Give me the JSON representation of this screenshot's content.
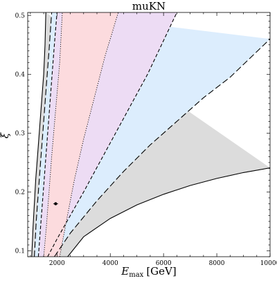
{
  "chart_data": {
    "type": "area",
    "title": "muKN",
    "xlabel": {
      "symbol": "E",
      "subscript": "max",
      "unit": "[GeV]"
    },
    "ylabel": "ξ",
    "xlim": [
      900,
      10000
    ],
    "ylim": [
      0.09,
      0.505
    ],
    "xticks": [
      2000,
      4000,
      6000,
      8000,
      10000
    ],
    "xtick_labels": [
      "2000",
      "4000",
      "6000",
      "8000",
      "10000"
    ],
    "yticks": [
      0.1,
      0.2,
      0.3,
      0.4,
      0.5
    ],
    "ytick_labels": [
      "0.1",
      "0.2",
      "0.3",
      "0.4",
      "0.5"
    ],
    "grid": false,
    "colors": {
      "outer": "#dcdcdc",
      "band2": "#dcedfd",
      "band1": "#eddcf4",
      "core": "#fcdbde",
      "line": "#000000",
      "frame": "#000000"
    },
    "regions": [
      {
        "name": "outer",
        "left": {
          "x": [
            1050,
            1100,
            1150,
            1200,
            1300,
            1400,
            1500,
            1550,
            1580
          ],
          "y": [
            0.09,
            0.14,
            0.18,
            0.22,
            0.28,
            0.34,
            0.4,
            0.45,
            0.505
          ]
        },
        "right": {
          "x": [
            2400,
            3000,
            4000,
            5000,
            6000,
            7000,
            8000,
            9000,
            10000
          ],
          "y": [
            0.09,
            0.124,
            0.155,
            0.178,
            0.196,
            0.211,
            0.223,
            0.233,
            0.241
          ]
        }
      },
      {
        "name": "band2",
        "left": {
          "x": [
            1150,
            1220,
            1300,
            1400,
            1500,
            1600,
            1700,
            1800
          ],
          "y": [
            0.09,
            0.15,
            0.2,
            0.26,
            0.32,
            0.38,
            0.44,
            0.505
          ]
        },
        "right": {
          "x": [
            1900,
            2500,
            3500,
            4500,
            5500,
            6500,
            7500,
            8500,
            10000
          ],
          "y": [
            0.09,
            0.13,
            0.185,
            0.235,
            0.28,
            0.32,
            0.36,
            0.395,
            0.46
          ]
        }
      },
      {
        "name": "band1",
        "left": {
          "x": [
            1300,
            1400,
            1500,
            1600,
            1700,
            1800,
            1900,
            2000
          ],
          "y": [
            0.09,
            0.15,
            0.21,
            0.27,
            0.33,
            0.39,
            0.45,
            0.505
          ]
        },
        "right": {
          "x": [
            1650,
            2000,
            2500,
            3000,
            3600,
            4200,
            4800,
            5400,
            6500
          ],
          "y": [
            0.09,
            0.12,
            0.16,
            0.2,
            0.25,
            0.3,
            0.35,
            0.4,
            0.505
          ]
        }
      },
      {
        "name": "core",
        "left": {
          "x": [
            1500,
            1600,
            1700,
            1800,
            1950,
            2100,
            2200
          ],
          "y": [
            0.09,
            0.14,
            0.2,
            0.26,
            0.34,
            0.42,
            0.505
          ]
        },
        "right": {
          "x": [
            2100,
            2350,
            2650,
            3000,
            3400,
            3800,
            4300
          ],
          "y": [
            0.09,
            0.15,
            0.22,
            0.29,
            0.36,
            0.43,
            0.505
          ]
        }
      }
    ],
    "curves": [
      {
        "style": "solid",
        "x": [
          1050,
          1100,
          1150,
          1200,
          1300,
          1400,
          1500,
          1550,
          1580
        ],
        "y": [
          0.09,
          0.14,
          0.18,
          0.22,
          0.28,
          0.34,
          0.4,
          0.45,
          0.505
        ]
      },
      {
        "style": "longdash",
        "x": [
          1150,
          1220,
          1300,
          1400,
          1500,
          1600,
          1700,
          1800
        ],
        "y": [
          0.09,
          0.15,
          0.2,
          0.26,
          0.32,
          0.38,
          0.44,
          0.505
        ]
      },
      {
        "style": "dash",
        "x": [
          1300,
          1400,
          1500,
          1600,
          1700,
          1800,
          1900,
          2000
        ],
        "y": [
          0.09,
          0.15,
          0.21,
          0.27,
          0.33,
          0.39,
          0.45,
          0.505
        ]
      },
      {
        "style": "dot",
        "x": [
          1500,
          1600,
          1700,
          1800,
          1950,
          2100,
          2200
        ],
        "y": [
          0.09,
          0.14,
          0.2,
          0.26,
          0.34,
          0.42,
          0.505
        ]
      },
      {
        "style": "dot",
        "x": [
          2100,
          2350,
          2650,
          3000,
          3400,
          3800,
          4300
        ],
        "y": [
          0.09,
          0.15,
          0.22,
          0.29,
          0.36,
          0.43,
          0.505
        ]
      },
      {
        "style": "dash",
        "x": [
          1650,
          2000,
          2500,
          3000,
          3600,
          4200,
          4800,
          5400,
          6500
        ],
        "y": [
          0.09,
          0.12,
          0.16,
          0.2,
          0.25,
          0.3,
          0.35,
          0.4,
          0.505
        ]
      },
      {
        "style": "longdash",
        "x": [
          1900,
          2500,
          3500,
          4500,
          5500,
          6500,
          7500,
          8500,
          10000
        ],
        "y": [
          0.09,
          0.13,
          0.185,
          0.235,
          0.28,
          0.32,
          0.36,
          0.395,
          0.46
        ]
      },
      {
        "style": "solid",
        "x": [
          2400,
          3000,
          4000,
          5000,
          6000,
          7000,
          8000,
          9000,
          10000
        ],
        "y": [
          0.09,
          0.124,
          0.155,
          0.178,
          0.196,
          0.211,
          0.223,
          0.233,
          0.241
        ]
      }
    ],
    "best_fit_point": {
      "x": 1950,
      "y": 0.18
    }
  }
}
